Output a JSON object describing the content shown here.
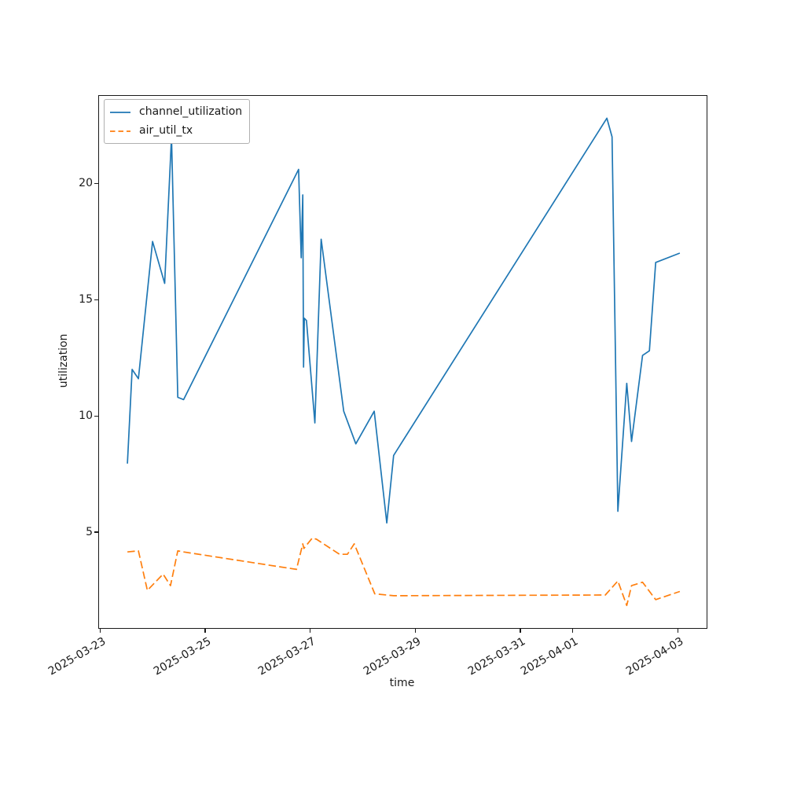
{
  "chart_data": {
    "type": "line",
    "title": "",
    "xlabel": "time",
    "ylabel": "utilization",
    "grid": false,
    "legend_position": "upper-left",
    "x_unit": "days since 2025-03-23 00:00",
    "xlim": [
      -0.02,
      11.55
    ],
    "ylim": [
      0.88,
      23.76
    ],
    "x_ticks": [
      {
        "t": 0,
        "label": "2025-03-23"
      },
      {
        "t": 2,
        "label": "2025-03-25"
      },
      {
        "t": 4,
        "label": "2025-03-27"
      },
      {
        "t": 6,
        "label": "2025-03-29"
      },
      {
        "t": 8,
        "label": "2025-03-31"
      },
      {
        "t": 9,
        "label": "2025-04-01"
      },
      {
        "t": 11,
        "label": "2025-04-03"
      }
    ],
    "y_ticks": [
      5,
      10,
      15,
      20
    ],
    "series": [
      {
        "name": "channel_utilization",
        "color": "#1f77b4",
        "linestyle": "solid",
        "points": [
          [
            0.52,
            7.95
          ],
          [
            0.61,
            12.0
          ],
          [
            0.73,
            11.6
          ],
          [
            1.0,
            17.5
          ],
          [
            1.23,
            15.7
          ],
          [
            1.36,
            22.0
          ],
          [
            1.48,
            10.8
          ],
          [
            1.59,
            10.7
          ],
          [
            3.78,
            20.6
          ],
          [
            3.83,
            16.8
          ],
          [
            3.86,
            19.5
          ],
          [
            3.875,
            12.1
          ],
          [
            3.89,
            14.2
          ],
          [
            3.93,
            14.1
          ],
          [
            4.09,
            9.7
          ],
          [
            4.21,
            17.6
          ],
          [
            4.64,
            10.2
          ],
          [
            4.87,
            8.8
          ],
          [
            5.22,
            10.2
          ],
          [
            5.46,
            5.4
          ],
          [
            5.59,
            8.3
          ],
          [
            9.65,
            22.8
          ],
          [
            9.75,
            22.0
          ],
          [
            9.86,
            5.9
          ],
          [
            10.03,
            11.4
          ],
          [
            10.12,
            8.9
          ],
          [
            10.33,
            12.6
          ],
          [
            10.46,
            12.8
          ],
          [
            10.58,
            16.6
          ],
          [
            11.04,
            17.0
          ]
        ]
      },
      {
        "name": "air_util_tx",
        "color": "#ff7f0e",
        "linestyle": "dashed",
        "points": [
          [
            0.52,
            4.15
          ],
          [
            0.73,
            4.2
          ],
          [
            0.9,
            2.5
          ],
          [
            1.2,
            3.2
          ],
          [
            1.34,
            2.7
          ],
          [
            1.48,
            4.2
          ],
          [
            1.59,
            4.15
          ],
          [
            3.74,
            3.4
          ],
          [
            3.86,
            4.5
          ],
          [
            3.88,
            4.3
          ],
          [
            4.04,
            4.75
          ],
          [
            4.12,
            4.7
          ],
          [
            4.56,
            4.05
          ],
          [
            4.71,
            4.05
          ],
          [
            4.84,
            4.5
          ],
          [
            5.23,
            2.35
          ],
          [
            5.59,
            2.27
          ],
          [
            9.62,
            2.3
          ],
          [
            9.86,
            2.9
          ],
          [
            10.03,
            1.85
          ],
          [
            10.12,
            2.7
          ],
          [
            10.33,
            2.85
          ],
          [
            10.58,
            2.1
          ],
          [
            11.04,
            2.45
          ]
        ]
      }
    ],
    "legend": {
      "entries": [
        "channel_utilization",
        "air_util_tx"
      ]
    }
  }
}
